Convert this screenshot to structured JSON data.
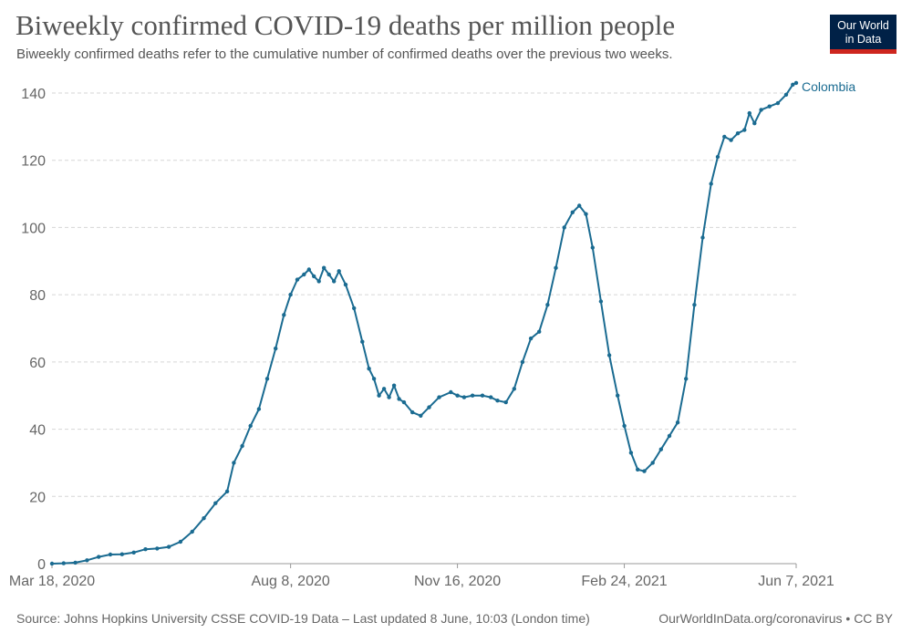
{
  "header": {
    "title": "Biweekly confirmed COVID-19 deaths per million people",
    "subtitle": "Biweekly confirmed deaths refer to the cumulative number of confirmed deaths over the previous two weeks."
  },
  "logo": {
    "line1": "Our World",
    "line2": "in Data"
  },
  "footer": {
    "source": "Source: Johns Hopkins University CSSE COVID-19 Data – Last updated 8 June, 10:03 (London time)",
    "credit": "OurWorldInData.org/coronavirus • CC BY"
  },
  "colors": {
    "series": "#1a6b91",
    "grid": "#d6d6d6",
    "text": "#555555",
    "logo_bg": "#002147",
    "logo_accent": "#ce261e"
  },
  "chart_data": {
    "type": "line",
    "title": "Biweekly confirmed COVID-19 deaths per million people",
    "subtitle": "Biweekly confirmed deaths refer to the cumulative number of confirmed deaths over the previous two weeks.",
    "xlabel": "",
    "ylabel": "",
    "x_range": [
      "2020-03-18",
      "2021-06-07"
    ],
    "ylim": [
      0,
      140
    ],
    "x_ticks": [
      {
        "date": "2020-03-18",
        "label": "Mar 18, 2020"
      },
      {
        "date": "2020-08-08",
        "label": "Aug 8, 2020"
      },
      {
        "date": "2020-11-16",
        "label": "Nov 16, 2020"
      },
      {
        "date": "2021-02-24",
        "label": "Feb 24, 2021"
      },
      {
        "date": "2021-06-07",
        "label": "Jun 7, 2021"
      }
    ],
    "y_ticks": [
      0,
      20,
      40,
      60,
      80,
      100,
      120,
      140
    ],
    "grid": "horizontal dashed",
    "legend": "end-of-line label",
    "series": [
      {
        "name": "Colombia",
        "points": [
          [
            "2020-03-18",
            0
          ],
          [
            "2020-03-25",
            0.1
          ],
          [
            "2020-04-01",
            0.3
          ],
          [
            "2020-04-08",
            1.0
          ],
          [
            "2020-04-15",
            2.0
          ],
          [
            "2020-04-22",
            2.7
          ],
          [
            "2020-04-29",
            2.8
          ],
          [
            "2020-05-06",
            3.3
          ],
          [
            "2020-05-13",
            4.3
          ],
          [
            "2020-05-20",
            4.5
          ],
          [
            "2020-05-27",
            5.0
          ],
          [
            "2020-06-03",
            6.5
          ],
          [
            "2020-06-10",
            9.5
          ],
          [
            "2020-06-17",
            13.5
          ],
          [
            "2020-06-24",
            18.0
          ],
          [
            "2020-07-01",
            21.5
          ],
          [
            "2020-07-05",
            30.0
          ],
          [
            "2020-07-10",
            35.0
          ],
          [
            "2020-07-15",
            41.0
          ],
          [
            "2020-07-20",
            46.0
          ],
          [
            "2020-07-25",
            55.0
          ],
          [
            "2020-07-30",
            64.0
          ],
          [
            "2020-08-04",
            74.0
          ],
          [
            "2020-08-08",
            80.0
          ],
          [
            "2020-08-12",
            84.5
          ],
          [
            "2020-08-16",
            86.0
          ],
          [
            "2020-08-19",
            87.5
          ],
          [
            "2020-08-22",
            85.5
          ],
          [
            "2020-08-25",
            84.0
          ],
          [
            "2020-08-28",
            88.0
          ],
          [
            "2020-08-31",
            86.0
          ],
          [
            "2020-09-03",
            84.0
          ],
          [
            "2020-09-06",
            87.0
          ],
          [
            "2020-09-10",
            83.0
          ],
          [
            "2020-09-15",
            76.0
          ],
          [
            "2020-09-20",
            66.0
          ],
          [
            "2020-09-24",
            58.0
          ],
          [
            "2020-09-27",
            55.0
          ],
          [
            "2020-09-30",
            50.0
          ],
          [
            "2020-10-03",
            52.0
          ],
          [
            "2020-10-06",
            49.5
          ],
          [
            "2020-10-09",
            53.0
          ],
          [
            "2020-10-12",
            49.0
          ],
          [
            "2020-10-15",
            48.0
          ],
          [
            "2020-10-20",
            45.0
          ],
          [
            "2020-10-25",
            44.0
          ],
          [
            "2020-10-30",
            46.5
          ],
          [
            "2020-11-05",
            49.5
          ],
          [
            "2020-11-12",
            51.0
          ],
          [
            "2020-11-16",
            50.0
          ],
          [
            "2020-11-20",
            49.5
          ],
          [
            "2020-11-25",
            50.0
          ],
          [
            "2020-12-01",
            50.0
          ],
          [
            "2020-12-06",
            49.5
          ],
          [
            "2020-12-10",
            48.5
          ],
          [
            "2020-12-15",
            48.0
          ],
          [
            "2020-12-20",
            52.0
          ],
          [
            "2020-12-25",
            60.0
          ],
          [
            "2020-12-30",
            67.0
          ],
          [
            "2021-01-04",
            69.0
          ],
          [
            "2021-01-09",
            77.0
          ],
          [
            "2021-01-14",
            88.0
          ],
          [
            "2021-01-19",
            100.0
          ],
          [
            "2021-01-24",
            104.5
          ],
          [
            "2021-01-28",
            106.5
          ],
          [
            "2021-02-01",
            104.0
          ],
          [
            "2021-02-05",
            94.0
          ],
          [
            "2021-02-10",
            78.0
          ],
          [
            "2021-02-15",
            62.0
          ],
          [
            "2021-02-20",
            50.0
          ],
          [
            "2021-02-24",
            41.0
          ],
          [
            "2021-02-28",
            33.0
          ],
          [
            "2021-03-04",
            28.0
          ],
          [
            "2021-03-08",
            27.5
          ],
          [
            "2021-03-13",
            30.0
          ],
          [
            "2021-03-18",
            34.0
          ],
          [
            "2021-03-23",
            38.0
          ],
          [
            "2021-03-28",
            42.0
          ],
          [
            "2021-04-02",
            55.0
          ],
          [
            "2021-04-07",
            77.0
          ],
          [
            "2021-04-12",
            97.0
          ],
          [
            "2021-04-17",
            113.0
          ],
          [
            "2021-04-21",
            121.0
          ],
          [
            "2021-04-25",
            127.0
          ],
          [
            "2021-04-29",
            126.0
          ],
          [
            "2021-05-03",
            128.0
          ],
          [
            "2021-05-07",
            129.0
          ],
          [
            "2021-05-10",
            134.0
          ],
          [
            "2021-05-13",
            131.0
          ],
          [
            "2021-05-17",
            135.0
          ],
          [
            "2021-05-22",
            136.0
          ],
          [
            "2021-05-27",
            137.0
          ],
          [
            "2021-06-01",
            139.5
          ],
          [
            "2021-06-05",
            142.5
          ],
          [
            "2021-06-07",
            143.0
          ]
        ]
      }
    ]
  }
}
